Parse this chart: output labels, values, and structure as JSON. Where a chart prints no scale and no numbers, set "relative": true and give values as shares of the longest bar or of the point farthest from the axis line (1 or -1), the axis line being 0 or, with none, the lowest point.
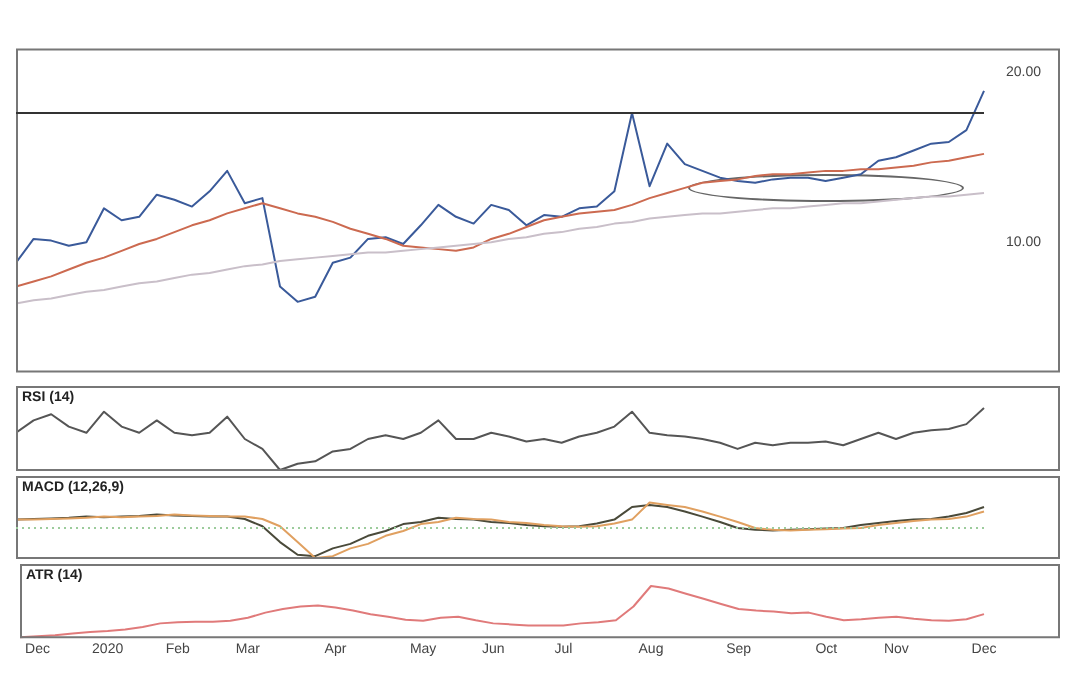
{
  "chart_data": [
    {
      "type": "line",
      "tick_labels": "y",
      "ylim": [
        2.4,
        21.4
      ],
      "yticks": [
        {
          "value": 10,
          "label": "10.00"
        },
        {
          "value": 20,
          "label": "20.00"
        }
      ],
      "categories": [
        null,
        null,
        null,
        null,
        null,
        null,
        null,
        null,
        null,
        null,
        null,
        null,
        null,
        null,
        null,
        null,
        null,
        null,
        null,
        null,
        null,
        null,
        null,
        null,
        null,
        null,
        null,
        null,
        null,
        null,
        null,
        null,
        null,
        null,
        null,
        null,
        null,
        null,
        null,
        null,
        null,
        null,
        null,
        null,
        null,
        null,
        null,
        null,
        null,
        null,
        null,
        null,
        null,
        null,
        null,
        null
      ],
      "series": [
        {
          "color": "#c9bfc9",
          "values": [
            6.4,
            6.6,
            6.7,
            6.9,
            7.1,
            7.2,
            7.4,
            7.6,
            7.7,
            7.9,
            8.1,
            8.2,
            8.4,
            8.6,
            8.7,
            8.9,
            9.0,
            9.1,
            9.2,
            9.3,
            9.4,
            9.4,
            9.5,
            9.6,
            9.7,
            9.8,
            9.9,
            10.0,
            10.2,
            10.3,
            10.5,
            10.6,
            10.8,
            10.9,
            11.1,
            11.2,
            11.4,
            11.5,
            11.6,
            11.7,
            11.7,
            11.8,
            11.9,
            12.0,
            12.0,
            12.1,
            12.2,
            12.3,
            12.3,
            12.4,
            12.5,
            12.6,
            12.7,
            12.7,
            12.8,
            12.9
          ]
        },
        {
          "color": "#cc6a50",
          "values": [
            7.4,
            7.7,
            8.0,
            8.4,
            8.8,
            9.1,
            9.5,
            9.9,
            10.2,
            10.6,
            11.0,
            11.3,
            11.7,
            12.0,
            12.3,
            12.0,
            11.7,
            11.5,
            11.2,
            10.8,
            10.5,
            10.2,
            9.8,
            9.7,
            9.6,
            9.5,
            9.7,
            10.2,
            10.5,
            10.9,
            11.3,
            11.5,
            11.7,
            11.8,
            11.9,
            12.2,
            12.6,
            12.9,
            13.2,
            13.5,
            13.6,
            13.7,
            13.9,
            14.0,
            14.0,
            14.1,
            14.2,
            14.2,
            14.3,
            14.3,
            14.4,
            14.5,
            14.7,
            14.8,
            15.0,
            15.2
          ]
        },
        {
          "color": "#3a5a9a",
          "values": [
            8.8,
            10.2,
            10.1,
            9.8,
            10.0,
            12.0,
            11.3,
            11.5,
            12.8,
            12.5,
            12.1,
            13.0,
            14.2,
            12.3,
            12.6,
            7.4,
            6.5,
            6.8,
            8.8,
            9.1,
            10.2,
            10.3,
            9.9,
            11.0,
            12.2,
            11.5,
            11.1,
            12.2,
            11.9,
            11.0,
            11.6,
            11.5,
            12.0,
            12.1,
            13.0,
            17.6,
            13.3,
            15.8,
            14.6,
            14.2,
            13.8,
            13.6,
            13.5,
            13.7,
            13.8,
            13.8,
            13.6,
            13.8,
            14.0,
            14.8,
            15.0,
            15.4,
            15.8,
            15.9,
            16.6,
            18.9
          ]
        }
      ],
      "ref_lines": [
        {
          "axis": "y",
          "value": 17.6,
          "color": "#333333"
        }
      ]
    },
    {
      "type": "line",
      "relative": true,
      "tick_labels": false,
      "title": "RSI (14)",
      "categories": [
        null,
        null,
        null,
        null,
        null,
        null,
        null,
        null,
        null,
        null,
        null,
        null,
        null,
        null,
        null,
        null,
        null,
        null,
        null,
        null,
        null,
        null,
        null,
        null,
        null,
        null,
        null,
        null,
        null,
        null,
        null,
        null,
        null,
        null,
        null,
        null,
        null,
        null,
        null,
        null,
        null,
        null,
        null,
        null,
        null,
        null,
        null,
        null,
        null,
        null,
        null,
        null,
        null,
        null,
        null,
        null
      ],
      "series": [
        {
          "color": "#555555",
          "values": [
            0.6,
            0.8,
            0.9,
            0.7,
            0.6,
            0.94,
            0.7,
            0.6,
            0.8,
            0.6,
            0.56,
            0.6,
            0.86,
            0.5,
            0.34,
            0,
            0.1,
            0.14,
            0.3,
            0.34,
            0.5,
            0.56,
            0.5,
            0.6,
            0.8,
            0.5,
            0.5,
            0.6,
            0.54,
            0.46,
            0.5,
            0.44,
            0.54,
            0.6,
            0.7,
            0.94,
            0.6,
            0.56,
            0.54,
            0.5,
            0.44,
            0.34,
            0.44,
            0.4,
            0.44,
            0.44,
            0.46,
            0.4,
            0.5,
            0.6,
            0.5,
            0.6,
            0.64,
            0.66,
            0.74,
            1
          ]
        }
      ]
    },
    {
      "type": "line",
      "relative": true,
      "tick_labels": false,
      "title": "MACD (12,26,9)",
      "categories": [
        null,
        null,
        null,
        null,
        null,
        null,
        null,
        null,
        null,
        null,
        null,
        null,
        null,
        null,
        null,
        null,
        null,
        null,
        null,
        null,
        null,
        null,
        null,
        null,
        null,
        null,
        null,
        null,
        null,
        null,
        null,
        null,
        null,
        null,
        null,
        null,
        null,
        null,
        null,
        null,
        null,
        null,
        null,
        null,
        null,
        null,
        null,
        null,
        null,
        null,
        null,
        null,
        null,
        null,
        null,
        null
      ],
      "series": [
        {
          "color": "#e0a060",
          "values": [
            0.28,
            0.28,
            0.3,
            0.32,
            0.34,
            0.38,
            0.36,
            0.38,
            0.4,
            0.45,
            0.42,
            0.4,
            0.38,
            0.38,
            0.3,
            0.06,
            -0.47,
            -1.0,
            -0.94,
            -0.68,
            -0.53,
            -0.26,
            -0.1,
            0.13,
            0.2,
            0.34,
            0.3,
            0.28,
            0.2,
            0.17,
            0.1,
            0.06,
            0.04,
            0.06,
            0.15,
            0.28,
            0.85,
            0.77,
            0.7,
            0.55,
            0.38,
            0.2,
            0.0,
            -0.06,
            -0.08,
            -0.06,
            -0.04,
            -0.02,
            0,
            0.1,
            0.17,
            0.23,
            0.28,
            0.3,
            0.38,
            0.55
          ]
        },
        {
          "color": "#4a4a3a",
          "values": [
            0.28,
            0.3,
            0.32,
            0.34,
            0.38,
            0.36,
            0.38,
            0.4,
            0.45,
            0.42,
            0.4,
            0.38,
            0.38,
            0.3,
            0.06,
            -0.47,
            -0.89,
            -0.94,
            -0.68,
            -0.53,
            -0.26,
            -0.1,
            0.13,
            0.2,
            0.34,
            0.3,
            0.28,
            0.2,
            0.17,
            0.1,
            0.06,
            0.04,
            0.06,
            0.15,
            0.28,
            0.7,
            0.77,
            0.7,
            0.55,
            0.38,
            0.2,
            0.0,
            -0.06,
            -0.08,
            -0.06,
            -0.04,
            -0.02,
            0,
            0.1,
            0.17,
            0.23,
            0.28,
            0.3,
            0.38,
            0.5,
            0.7
          ]
        }
      ],
      "ref_lines": [
        {
          "axis": "y",
          "value": 0,
          "color": "#9ccc9c",
          "line_style": "dotted"
        }
      ]
    },
    {
      "type": "line",
      "relative": true,
      "tick_labels": "x",
      "title": "ATR (14)",
      "categories": [
        null,
        "Dec",
        null,
        null,
        null,
        "2020",
        null,
        null,
        null,
        "Feb",
        null,
        null,
        null,
        "Mar",
        null,
        null,
        null,
        null,
        "Apr",
        null,
        null,
        null,
        null,
        "May",
        null,
        null,
        null,
        "Jun",
        null,
        null,
        null,
        "Jul",
        null,
        null,
        null,
        null,
        "Aug",
        null,
        null,
        null,
        null,
        "Sep",
        null,
        null,
        null,
        null,
        "Oct",
        null,
        null,
        null,
        "Nov",
        null,
        null,
        null,
        null,
        "Dec"
      ],
      "series": [
        {
          "color": "#e07a7a",
          "values": [
            0,
            0.02,
            0.04,
            0.07,
            0.1,
            0.12,
            0.15,
            0.2,
            0.27,
            0.29,
            0.3,
            0.3,
            0.32,
            0.38,
            0.48,
            0.55,
            0.6,
            0.62,
            0.58,
            0.52,
            0.45,
            0.4,
            0.34,
            0.32,
            0.38,
            0.4,
            0.33,
            0.27,
            0.25,
            0.23,
            0.23,
            0.23,
            0.27,
            0.29,
            0.33,
            0.6,
            1.0,
            0.95,
            0.85,
            0.75,
            0.65,
            0.55,
            0.52,
            0.5,
            0.47,
            0.48,
            0.4,
            0.33,
            0.35,
            0.38,
            0.4,
            0.36,
            0.33,
            0.32,
            0.35,
            0.45
          ]
        }
      ]
    }
  ]
}
